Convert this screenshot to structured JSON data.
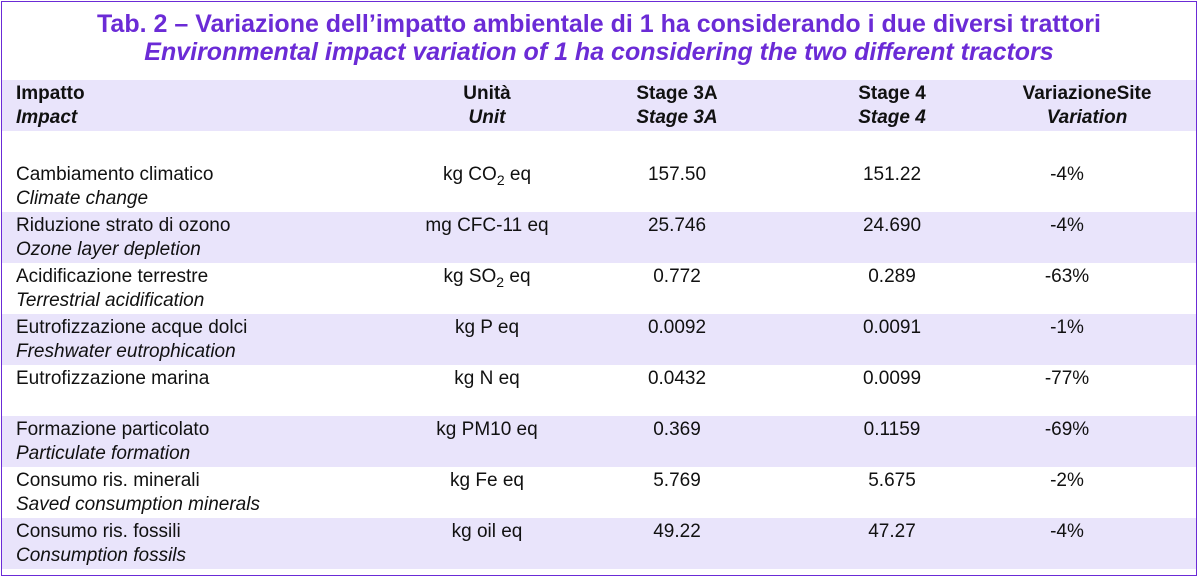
{
  "title": {
    "it": "Tab. 2 – Variazione dell’impatto ambientale di 1 ha considerando i due diversi trattori",
    "en": "Environmental impact variation of 1 ha considering the two different tractors"
  },
  "headers": {
    "impact": {
      "it": "Impatto",
      "en": "Impact"
    },
    "unit": {
      "it": "Unità",
      "en": "Unit"
    },
    "stage3a": {
      "it": "Stage 3A",
      "en": "Stage 3A"
    },
    "stage4": {
      "it": "Stage 4",
      "en": "Stage 4"
    },
    "variation": {
      "it": "VariazioneSite",
      "en": "Variation"
    }
  },
  "rows": [
    {
      "it": "Cambiamento climatico",
      "en": "Climate change",
      "unit_main": "kg CO",
      "unit_sub": "2",
      "unit_tail": " eq",
      "stage3a": "157.50",
      "stage4": "151.22",
      "variation": "-4%"
    },
    {
      "it": "Riduzione strato di ozono",
      "en": "Ozone layer depletion",
      "unit_main": "mg CFC-11 eq",
      "unit_sub": "",
      "unit_tail": "",
      "stage3a": "25.746",
      "stage4": "24.690",
      "variation": "-4%"
    },
    {
      "it": "Acidificazione terrestre",
      "en": "Terrestrial acidification",
      "unit_main": "kg SO",
      "unit_sub": "2",
      "unit_tail": " eq",
      "stage3a": "0.772",
      "stage4": "0.289",
      "variation": "-63%"
    },
    {
      "it": "Eutrofizzazione acque dolci",
      "en": "Freshwater eutrophication",
      "unit_main": "kg P eq",
      "unit_sub": "",
      "unit_tail": "",
      "stage3a": "0.0092",
      "stage4": "0.0091",
      "variation": "-1%"
    },
    {
      "it": "Eutrofizzazione marina",
      "en": "",
      "unit_main": "kg N eq",
      "unit_sub": "",
      "unit_tail": "",
      "stage3a": "0.0432",
      "stage4": "0.0099",
      "variation": "-77%"
    },
    {
      "it": "Formazione particolato",
      "en": "Particulate formation",
      "unit_main": "kg PM10 eq",
      "unit_sub": "",
      "unit_tail": "",
      "stage3a": "0.369",
      "stage4": "0.1159",
      "variation": "-69%"
    },
    {
      "it": "Consumo ris. minerali",
      "en": "Saved consumption minerals",
      "unit_main": "kg Fe eq",
      "unit_sub": "",
      "unit_tail": "",
      "stage3a": "5.769",
      "stage4": "5.675",
      "variation": "-2%"
    },
    {
      "it": "Consumo ris. fossili",
      "en": "Consumption fossils",
      "unit_main": "kg oil eq",
      "unit_sub": "",
      "unit_tail": "",
      "stage3a": "49.22",
      "stage4": "47.27",
      "variation": "-4%"
    }
  ],
  "colors": {
    "accent": "#6b2bd6",
    "band": "#e9e4fb"
  }
}
